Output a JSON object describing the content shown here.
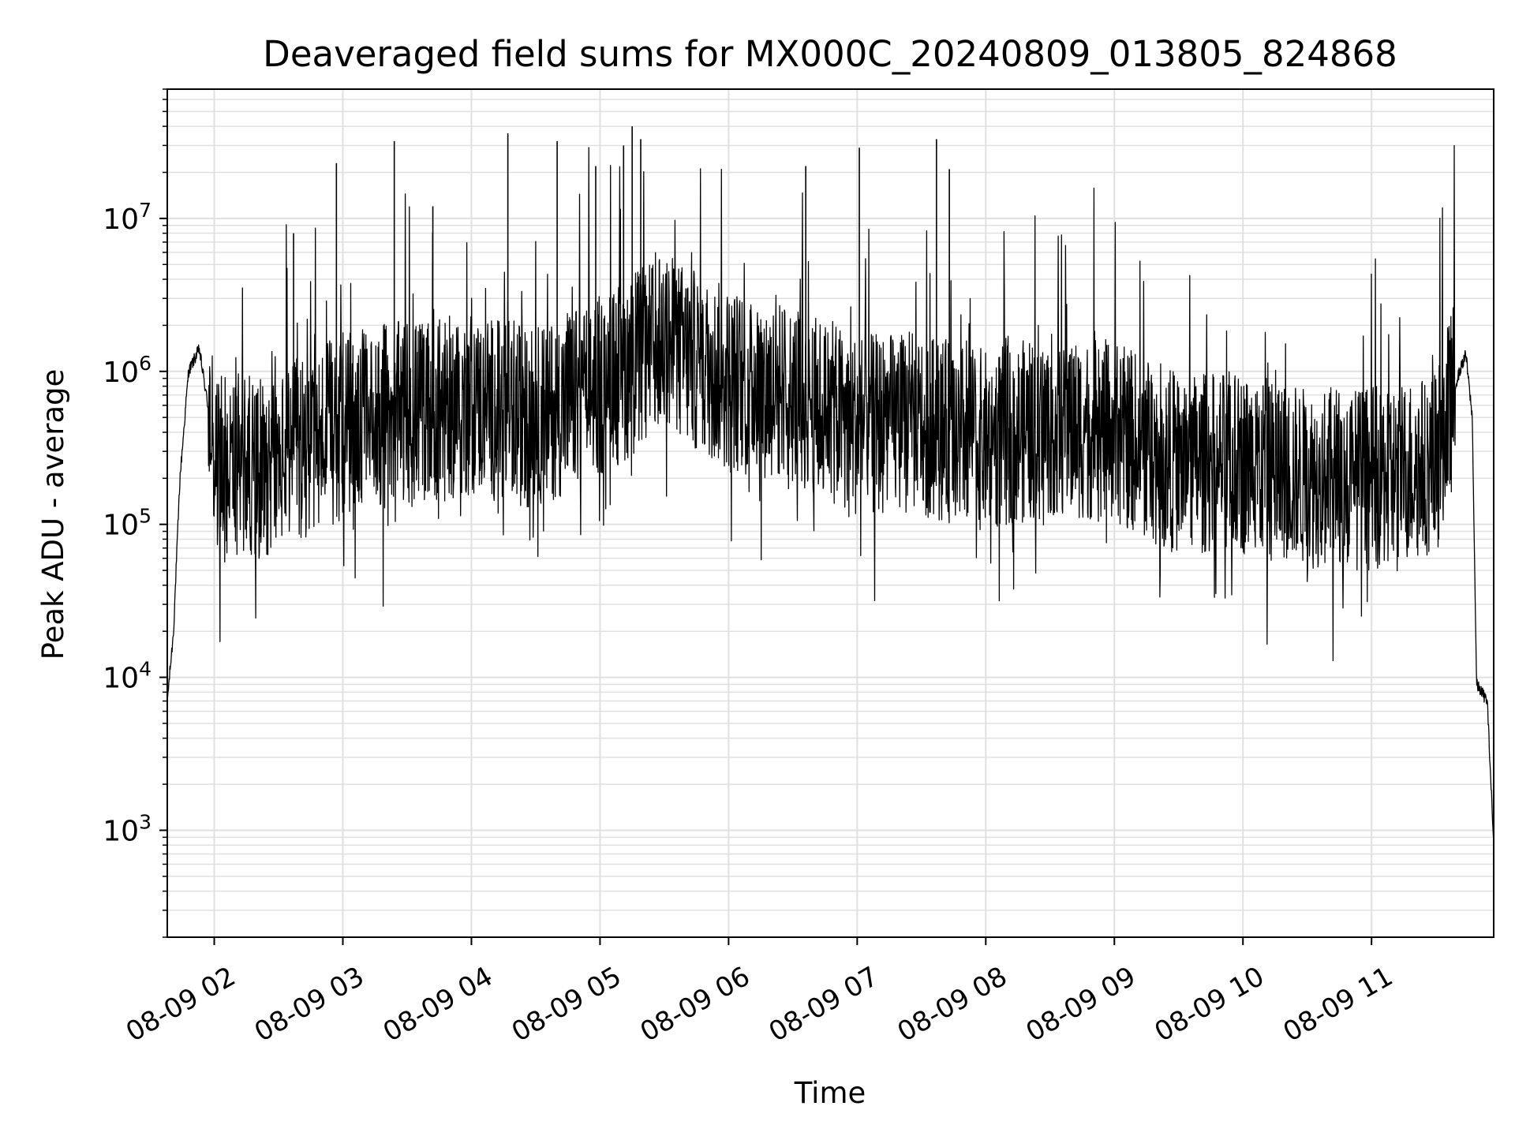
{
  "chart_data": {
    "type": "line",
    "title": "Deaveraged field sums for MX000C_20240809_013805_824868",
    "xlabel": "Time",
    "ylabel": "Peak ADU - average",
    "yscale": "log",
    "ylim": [
      200,
      70000000
    ],
    "xlim": [
      "2024-08-09T01:38:05",
      "2024-08-09T11:57:00"
    ],
    "grid": true,
    "line_color": "#000000",
    "grid_color": "#e0e0e0",
    "x_ticks": [
      {
        "time": "2024-08-09T02:00:00",
        "label": "08-09 02"
      },
      {
        "time": "2024-08-09T03:00:00",
        "label": "08-09 03"
      },
      {
        "time": "2024-08-09T04:00:00",
        "label": "08-09 04"
      },
      {
        "time": "2024-08-09T05:00:00",
        "label": "08-09 05"
      },
      {
        "time": "2024-08-09T06:00:00",
        "label": "08-09 06"
      },
      {
        "time": "2024-08-09T07:00:00",
        "label": "08-09 07"
      },
      {
        "time": "2024-08-09T08:00:00",
        "label": "08-09 08"
      },
      {
        "time": "2024-08-09T09:00:00",
        "label": "08-09 09"
      },
      {
        "time": "2024-08-09T10:00:00",
        "label": "08-09 10"
      },
      {
        "time": "2024-08-09T11:00:00",
        "label": "08-09 11"
      }
    ],
    "y_ticks": [
      {
        "exp": 3,
        "base": "10",
        "sup": "3"
      },
      {
        "exp": 4,
        "base": "10",
        "sup": "4"
      },
      {
        "exp": 5,
        "base": "10",
        "sup": "5"
      },
      {
        "exp": 6,
        "base": "10",
        "sup": "6"
      },
      {
        "exp": 7,
        "base": "10",
        "sup": "7"
      }
    ],
    "series_envelope": {
      "description_of_shape": "dense noisy time series; values estimated from axes",
      "points": [
        [
          "2024-08-09T01:38:05",
          7000
        ],
        [
          "2024-08-09T01:41:00",
          20000
        ],
        [
          "2024-08-09T01:44:00",
          200000
        ],
        [
          "2024-08-09T01:48:00",
          1000000
        ],
        [
          "2024-08-09T01:53:00",
          1400000
        ],
        [
          "2024-08-09T01:57:00",
          600000
        ],
        [
          "2024-08-09T02:00:00",
          250000
        ],
        [
          "2024-08-09T02:30:00",
          250000
        ],
        [
          "2024-08-09T03:00:00",
          450000
        ],
        [
          "2024-08-09T03:30:00",
          550000
        ],
        [
          "2024-08-09T04:00:00",
          600000
        ],
        [
          "2024-08-09T04:30:00",
          500000
        ],
        [
          "2024-08-09T05:00:00",
          800000
        ],
        [
          "2024-08-09T05:30:00",
          1500000
        ],
        [
          "2024-08-09T06:00:00",
          900000
        ],
        [
          "2024-08-09T06:30:00",
          700000
        ],
        [
          "2024-08-09T07:00:00",
          450000
        ],
        [
          "2024-08-09T07:30:00",
          450000
        ],
        [
          "2024-08-09T08:00:00",
          350000
        ],
        [
          "2024-08-09T08:30:00",
          450000
        ],
        [
          "2024-08-09T09:00:00",
          400000
        ],
        [
          "2024-08-09T09:30:00",
          250000
        ],
        [
          "2024-08-09T10:00:00",
          250000
        ],
        [
          "2024-08-09T10:30:00",
          200000
        ],
        [
          "2024-08-09T11:00:00",
          200000
        ],
        [
          "2024-08-09T11:30:00",
          250000
        ],
        [
          "2024-08-09T11:40:00",
          900000
        ],
        [
          "2024-08-09T11:44:00",
          1300000
        ],
        [
          "2024-08-09T11:47:00",
          500000
        ],
        [
          "2024-08-09T11:49:00",
          9000
        ],
        [
          "2024-08-09T11:54:00",
          7000
        ],
        [
          "2024-08-09T11:57:00",
          800
        ]
      ]
    },
    "spikes": [
      [
        "2024-08-09T02:37:00",
        8000000
      ],
      [
        "2024-08-09T02:57:00",
        23000000
      ],
      [
        "2024-08-09T03:24:00",
        32000000
      ],
      [
        "2024-08-09T03:42:00",
        12000000
      ],
      [
        "2024-08-09T04:17:00",
        36000000
      ],
      [
        "2024-08-09T04:40:00",
        32000000
      ],
      [
        "2024-08-09T04:58:00",
        22000000
      ],
      [
        "2024-08-09T05:11:00",
        30000000
      ],
      [
        "2024-08-09T05:15:00",
        40000000
      ],
      [
        "2024-08-09T05:19:00",
        33000000
      ],
      [
        "2024-08-09T06:36:00",
        22000000
      ],
      [
        "2024-08-09T07:01:00",
        29000000
      ],
      [
        "2024-08-09T07:37:00",
        33000000
      ],
      [
        "2024-08-09T07:43:00",
        21000000
      ]
    ]
  }
}
